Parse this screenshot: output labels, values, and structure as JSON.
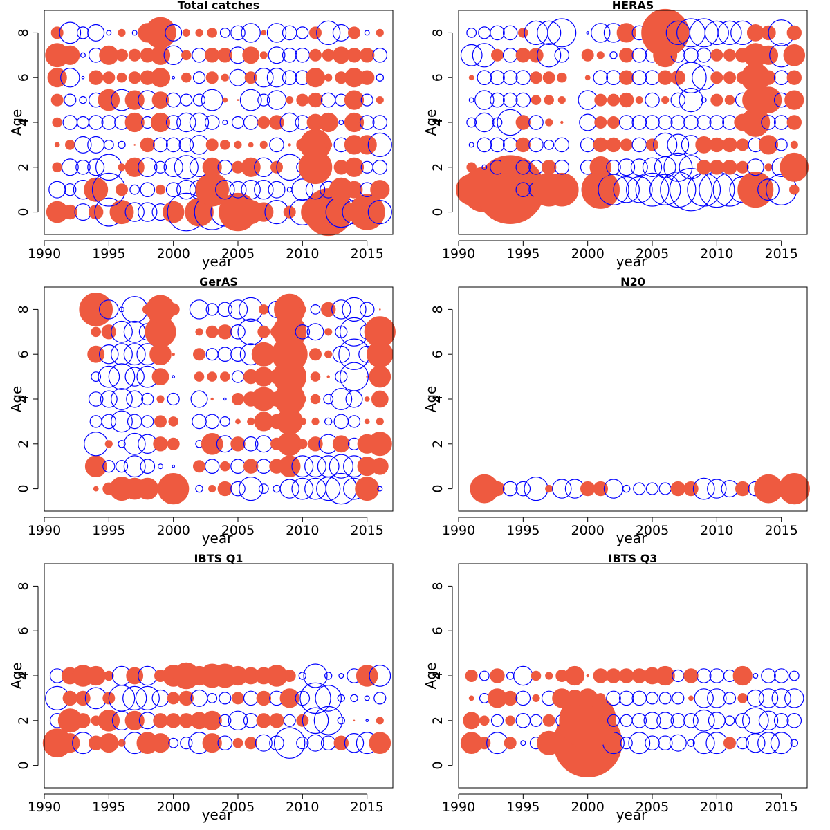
{
  "figure": {
    "colors": {
      "positive": "#EE5A40",
      "negative": "#0000FF"
    },
    "encoding_note": "Each bubble is a residual; filled orange circles are positive, open blue circles are negative; radius proportional to |residual|."
  },
  "chart_data": [
    {
      "type": "bubble",
      "title": "Total catches",
      "xlabel": "year",
      "ylabel": "Age",
      "xlim": [
        1990,
        2017
      ],
      "ylim": [
        -1,
        9
      ],
      "xticks": [
        1990,
        1995,
        2000,
        2005,
        2010,
        2015
      ],
      "yticks": [
        0,
        2,
        4,
        6,
        8
      ],
      "years": [
        1991,
        1992,
        1993,
        1994,
        1995,
        1996,
        1997,
        1998,
        1999,
        2000,
        2001,
        2002,
        2003,
        2004,
        2005,
        2006,
        2007,
        2008,
        2009,
        2010,
        2011,
        2012,
        2013,
        2014,
        2015,
        2016
      ],
      "ages": [
        0,
        1,
        2,
        3,
        4,
        5,
        6,
        7,
        8
      ],
      "residuals_by_age": [
        [
          0.9,
          0.6,
          -0.7,
          0.6,
          -1.2,
          1.0,
          -0.8,
          -0.8,
          -0.7,
          0.9,
          -1.6,
          1.2,
          -1.5,
          -1.2,
          1.6,
          1.0,
          0.8,
          -1.0,
          0.5,
          -1.1,
          1.2,
          2.0,
          -1.3,
          -1.0,
          1.5,
          -1.0
        ],
        [
          -0.7,
          -0.5,
          -0.8,
          1.0,
          -1.4,
          0.5,
          -0.4,
          -0.6,
          0.4,
          -0.6,
          -0.8,
          -0.8,
          1.4,
          -0.8,
          -0.7,
          -0.8,
          -0.8,
          -0.7,
          -0.2,
          -0.9,
          -0.8,
          -0.7,
          1.0,
          0.7,
          -0.6,
          0.8
        ],
        [
          0.4,
          -0.7,
          -0.6,
          -0.7,
          -1.1,
          0.3,
          0.8,
          -0.8,
          -0.5,
          -0.8,
          -1.0,
          -0.8,
          0.8,
          -0.6,
          0.5,
          0.8,
          -0.8,
          0.5,
          -1.1,
          -0.5,
          1.4,
          0.2,
          0.6,
          0.8,
          -0.5,
          -0.6
        ],
        [
          0.2,
          0.4,
          -0.7,
          -0.7,
          -0.4,
          -0.3,
          0.0,
          0.6,
          -0.6,
          -0.6,
          -0.6,
          -0.8,
          0.5,
          0.4,
          0.3,
          0.2,
          0.3,
          -0.6,
          0.1,
          0.5,
          1.3,
          0.3,
          -0.6,
          0.8,
          0.8,
          -1.0
        ],
        [
          0.4,
          -0.6,
          -0.5,
          -0.6,
          -0.6,
          -0.6,
          0.8,
          -0.5,
          0.8,
          -0.6,
          -0.8,
          -0.8,
          -0.6,
          -0.2,
          -0.5,
          -0.6,
          0.5,
          0.6,
          -0.8,
          -0.6,
          0.7,
          0.8,
          -0.2,
          0.8,
          -0.6,
          -0.6
        ],
        [
          0.5,
          -0.5,
          -0.3,
          -0.6,
          0.9,
          -0.9,
          0.8,
          -0.8,
          0.7,
          -0.6,
          -0.5,
          -0.5,
          -0.9,
          0.2,
          0.0,
          -0.9,
          -0.5,
          -0.8,
          0.3,
          0.5,
          0.6,
          -0.6,
          -0.5,
          0.8,
          -0.5,
          0.3
        ],
        [
          0.8,
          -0.8,
          -0.1,
          0.6,
          0.5,
          0.4,
          0.5,
          0.6,
          0.8,
          -0.1,
          0.4,
          -0.5,
          0.5,
          0.3,
          -0.7,
          0.5,
          -0.8,
          -0.8,
          -0.6,
          -0.6,
          0.8,
          0.3,
          0.5,
          0.8,
          0.6,
          -0.3
        ],
        [
          1.0,
          0.8,
          -0.2,
          -0.6,
          0.8,
          0.5,
          0.5,
          0.6,
          0.8,
          -0.8,
          0.4,
          -0.6,
          0.6,
          0.6,
          -0.7,
          0.7,
          0.3,
          -0.7,
          -0.6,
          -0.6,
          0.5,
          0.5,
          0.7,
          0.6,
          0.6,
          -0.6
        ],
        [
          0.5,
          -0.9,
          -0.5,
          -0.7,
          -0.2,
          0.3,
          -0.2,
          0.8,
          1.3,
          -0.7,
          0.3,
          0.3,
          0.4,
          -0.4,
          -0.6,
          -0.8,
          0.2,
          -0.8,
          -0.6,
          -0.5,
          0.5,
          -1.0,
          -0.7,
          0.5,
          -0.2,
          0.3
        ]
      ]
    },
    {
      "type": "bubble",
      "title": "HERAS",
      "xlabel": "year",
      "ylabel": "Age",
      "xlim": [
        1990,
        2017
      ],
      "ylim": [
        -1,
        9
      ],
      "xticks": [
        1990,
        1995,
        2000,
        2005,
        2010,
        2015
      ],
      "yticks": [
        0,
        2,
        4,
        6,
        8
      ],
      "years": [
        1991,
        1992,
        1993,
        1994,
        1995,
        1996,
        1997,
        1998,
        2000,
        2001,
        2002,
        2003,
        2004,
        2005,
        2006,
        2007,
        2008,
        2009,
        2010,
        2011,
        2012,
        2013,
        2014,
        2015,
        2016
      ],
      "ages": [
        1,
        2,
        3,
        4,
        5,
        6,
        7,
        8
      ],
      "residuals_by_age": [
        [
          1.3,
          1.9,
          2.2,
          2.9,
          -0.6,
          -0.6,
          1.4,
          1.4,
          -0.5,
          1.6,
          -1.3,
          -1.1,
          -1.1,
          -1.4,
          -1.3,
          -1.5,
          -1.8,
          -1.4,
          -1.5,
          -1.4,
          -1.1,
          1.5,
          -0.9,
          -1.3,
          0.4
        ],
        [
          0.4,
          -0.2,
          -0.6,
          0.9,
          -0.6,
          -0.6,
          0.6,
          -0.6,
          -0.6,
          0.9,
          -0.6,
          -0.7,
          -0.7,
          -0.8,
          -0.9,
          -1.2,
          -1.0,
          0.6,
          0.6,
          0.6,
          0.5,
          -0.7,
          0.3,
          -0.8,
          1.2
        ],
        [
          -0.2,
          -0.6,
          -0.6,
          -0.6,
          0.6,
          -0.6,
          -0.4,
          -0.6,
          -0.6,
          0.6,
          0.6,
          0.5,
          -0.6,
          0.5,
          -1.0,
          -0.9,
          -0.8,
          0.7,
          0.6,
          0.6,
          0.5,
          -0.6,
          0.8,
          -0.5,
          0.3
        ],
        [
          -0.4,
          -0.8,
          -0.4,
          -1.1,
          0.6,
          -0.6,
          0.3,
          0.1,
          -0.7,
          0.5,
          0.5,
          -0.6,
          -0.6,
          -0.6,
          -0.6,
          -0.6,
          -0.6,
          -0.6,
          -0.6,
          -0.6,
          0.7,
          1.2,
          -0.6,
          -0.6,
          0.6
        ],
        [
          -0.2,
          -0.8,
          -0.6,
          -0.6,
          -0.6,
          0.4,
          0.4,
          0.3,
          -0.8,
          0.5,
          0.5,
          0.6,
          0.3,
          -0.6,
          0.3,
          -0.6,
          -1.0,
          -0.2,
          0.5,
          0.4,
          -0.6,
          1.1,
          1.1,
          -0.6,
          0.8
        ],
        [
          0.2,
          -0.6,
          -0.6,
          -0.6,
          -0.6,
          0.5,
          0.5,
          0.4,
          0.2,
          -0.6,
          -0.6,
          0.6,
          -0.6,
          -0.6,
          0.6,
          0.6,
          -1.3,
          -1.0,
          0.5,
          0.5,
          0.5,
          1.2,
          0.6,
          -0.6,
          0.6
        ],
        [
          -0.9,
          -1.0,
          0.5,
          -0.6,
          0.6,
          0.6,
          -1.0,
          -0.6,
          0.5,
          0.3,
          -0.3,
          0.6,
          -0.6,
          -0.6,
          1.0,
          -0.6,
          -0.6,
          -0.6,
          0.5,
          0.5,
          0.6,
          1.0,
          0.8,
          -1.0,
          0.9
        ],
        [
          -0.4,
          -0.5,
          -0.6,
          -0.6,
          0.4,
          -1.0,
          -1.0,
          -1.2,
          -0.1,
          -0.8,
          -0.8,
          0.8,
          -0.6,
          -0.7,
          2.0,
          -1.0,
          -1.2,
          -1.2,
          -1.0,
          -1.0,
          -1.0,
          0.7,
          0.6,
          -1.1,
          0.6
        ]
      ]
    },
    {
      "type": "bubble",
      "title": "GerAS",
      "xlabel": "year",
      "ylabel": "Age",
      "xlim": [
        1990,
        2017
      ],
      "ylim": [
        -1,
        9
      ],
      "xticks": [
        1990,
        1995,
        2000,
        2005,
        2010,
        2015
      ],
      "yticks": [
        0,
        2,
        4,
        6,
        8
      ],
      "years": [
        1994,
        1995,
        1996,
        1997,
        1998,
        1999,
        2000,
        2002,
        2003,
        2004,
        2005,
        2006,
        2007,
        2008,
        2009,
        2010,
        2011,
        2012,
        2013,
        2014,
        2015,
        2016
      ],
      "ages": [
        0,
        1,
        2,
        3,
        4,
        5,
        6,
        7,
        8
      ],
      "residuals_by_age": [
        [
          0.2,
          0.5,
          1.0,
          0.9,
          0.9,
          0.3,
          1.3,
          -0.3,
          0.3,
          0.6,
          -0.6,
          -1.0,
          -0.4,
          -0.3,
          -0.8,
          -0.9,
          -0.9,
          -1.0,
          -1.3,
          -0.9,
          1.0,
          -0.2
        ],
        [
          0.9,
          -0.5,
          -0.5,
          -0.9,
          -0.6,
          -0.2,
          -0.1,
          0.5,
          -0.6,
          0.4,
          -0.6,
          0.6,
          -0.6,
          0.6,
          0.9,
          -0.9,
          -0.9,
          -0.9,
          -1.0,
          -0.9,
          0.8,
          0.7
        ],
        [
          -1.0,
          0.3,
          -0.3,
          -0.9,
          -0.8,
          0.6,
          0.5,
          -0.3,
          0.9,
          -0.7,
          0.6,
          -0.6,
          -0.7,
          0.5,
          1.0,
          0.4,
          0.6,
          -0.8,
          0.7,
          -0.5,
          0.8,
          1.0
        ],
        [
          -0.5,
          -0.6,
          -0.9,
          -0.6,
          -0.5,
          0.5,
          0.4,
          -0.6,
          -0.6,
          -0.4,
          0.2,
          0.3,
          0.8,
          0.6,
          1.1,
          0.3,
          0.3,
          -0.3,
          -0.6,
          -0.5,
          0.2,
          0.3
        ],
        [
          -0.6,
          -0.7,
          -0.9,
          -0.7,
          -0.5,
          0.3,
          -0.5,
          -0.7,
          0.1,
          -0.1,
          0.5,
          0.6,
          1.0,
          0.6,
          1.3,
          0.3,
          0.4,
          -0.4,
          -0.9,
          -0.7,
          0.2,
          0.7
        ],
        [
          -0.4,
          -0.9,
          -1.1,
          -0.8,
          -0.9,
          0.7,
          -0.1,
          0.4,
          0.4,
          0.4,
          -0.5,
          0.6,
          0.8,
          0.6,
          1.4,
          0.3,
          0.4,
          0.1,
          -0.5,
          -1.2,
          0.0,
          0.9
        ],
        [
          0.7,
          -0.8,
          -0.9,
          -0.9,
          -0.9,
          0.9,
          0.1,
          0.5,
          -0.5,
          -0.6,
          -0.6,
          -0.9,
          1.0,
          0.6,
          1.5,
          0.3,
          0.5,
          0.3,
          -0.7,
          -1.3,
          -0.7,
          1.1
        ],
        [
          0.4,
          0.6,
          -0.9,
          -0.9,
          -0.7,
          1.3,
          0.2,
          0.3,
          0.5,
          0.6,
          -0.6,
          -1.1,
          0.5,
          0.5,
          1.4,
          -0.6,
          -0.7,
          0.3,
          -0.5,
          -1.2,
          -0.6,
          1.3
        ],
        [
          1.4,
          -0.8,
          -0.2,
          -1.1,
          0.4,
          1.2,
          0.5,
          -0.8,
          -0.5,
          -0.6,
          -0.8,
          -1.0,
          0.4,
          -0.7,
          1.3,
          0.3,
          -0.4,
          0.6,
          -0.8,
          -1.0,
          -0.6,
          0.0
        ]
      ]
    },
    {
      "type": "bubble",
      "title": "N20",
      "xlabel": "year",
      "ylabel": "Age",
      "xlim": [
        1990,
        2017
      ],
      "ylim": [
        -1,
        9
      ],
      "xticks": [
        1990,
        1995,
        2000,
        2005,
        2010,
        2015
      ],
      "yticks": [
        0,
        2,
        4,
        6,
        8
      ],
      "years": [
        1992,
        1993,
        1994,
        1995,
        1996,
        1997,
        1998,
        1999,
        2000,
        2001,
        2002,
        2003,
        2004,
        2005,
        2006,
        2007,
        2008,
        2009,
        2010,
        2011,
        2012,
        2013,
        2014,
        2015,
        2016
      ],
      "ages": [
        0
      ],
      "residuals_by_age": [
        [
          1.2,
          0.6,
          -0.6,
          -0.6,
          -1.0,
          0.3,
          -0.8,
          -0.8,
          0.6,
          0.6,
          -0.8,
          -0.3,
          -0.5,
          -0.5,
          -0.5,
          0.6,
          0.6,
          -0.9,
          -0.8,
          -0.7,
          0.6,
          -0.6,
          1.2,
          0.2,
          1.3
        ]
      ]
    },
    {
      "type": "bubble",
      "title": "IBTS Q1",
      "xlabel": "year",
      "ylabel": "Age",
      "xlim": [
        1990,
        2017
      ],
      "ylim": [
        -1,
        9
      ],
      "xticks": [
        1990,
        1995,
        2000,
        2005,
        2010,
        2015
      ],
      "yticks": [
        0,
        2,
        4,
        6,
        8
      ],
      "years": [
        1991,
        1992,
        1993,
        1994,
        1995,
        1996,
        1997,
        1998,
        1999,
        2000,
        2001,
        2002,
        2003,
        2004,
        2005,
        2006,
        2007,
        2008,
        2009,
        2010,
        2011,
        2012,
        2013,
        2014,
        2015,
        2016
      ],
      "ages": [
        1,
        2,
        3,
        4
      ],
      "residuals_by_age": [
        [
          1.2,
          0.8,
          -0.9,
          0.6,
          0.8,
          0.3,
          -0.9,
          0.9,
          0.8,
          -0.4,
          -0.5,
          -0.9,
          0.8,
          -0.6,
          0.4,
          0.5,
          -0.7,
          -0.6,
          -1.3,
          -0.5,
          -0.7,
          -0.6,
          0.6,
          -0.8,
          -0.9,
          0.9
        ],
        [
          -0.6,
          1.0,
          0.6,
          0.4,
          0.9,
          -0.8,
          0.8,
          -0.7,
          0.6,
          0.6,
          0.6,
          0.7,
          0.8,
          -0.5,
          -0.8,
          -0.6,
          0.6,
          0.6,
          -0.5,
          0.5,
          -1.1,
          -1.2,
          -0.3,
          0.0,
          -0.1,
          0.3
        ],
        [
          -1.0,
          0.6,
          0.6,
          -0.9,
          0.5,
          -1.1,
          -1.0,
          -1.0,
          -0.7,
          0.5,
          0.6,
          -0.7,
          -0.4,
          -0.5,
          0.5,
          -0.6,
          0.6,
          -0.6,
          0.8,
          -0.6,
          -1.3,
          -1.1,
          -0.3,
          -0.3,
          -0.2,
          -0.5
        ],
        [
          -0.6,
          0.7,
          0.9,
          0.8,
          0.4,
          -0.8,
          0.7,
          -0.8,
          0.5,
          0.9,
          1.1,
          0.8,
          1.0,
          1.0,
          0.8,
          0.7,
          0.7,
          0.9,
          0.5,
          -0.3,
          -1.0,
          -0.3,
          -0.2,
          -0.6,
          0.9,
          -0.9
        ]
      ]
    },
    {
      "type": "bubble",
      "title": "IBTS Q3",
      "xlabel": "year",
      "ylabel": "Age",
      "xlim": [
        1990,
        2017
      ],
      "ylim": [
        -1,
        9
      ],
      "xticks": [
        1990,
        1995,
        2000,
        2005,
        2010,
        2015
      ],
      "yticks": [
        0,
        2,
        4,
        6,
        8
      ],
      "years": [
        1991,
        1992,
        1993,
        1994,
        1995,
        1996,
        1997,
        1998,
        1999,
        2000,
        2001,
        2002,
        2003,
        2004,
        2005,
        2006,
        2007,
        2008,
        2009,
        2010,
        2011,
        2012,
        2013,
        2014,
        2015,
        2016
      ],
      "ages": [
        1,
        2,
        3,
        4
      ],
      "residuals_by_age": [
        [
          0.9,
          0.5,
          -0.9,
          0.5,
          -0.2,
          -0.5,
          1.0,
          1.0,
          0.6,
          2.9,
          0.4,
          -0.9,
          -0.5,
          -0.9,
          -0.6,
          -0.6,
          -0.7,
          -0.3,
          -0.9,
          -0.9,
          0.5,
          -0.5,
          -0.8,
          -0.9,
          -0.9,
          -0.3
        ],
        [
          0.7,
          0.4,
          -0.5,
          0.4,
          -0.6,
          -0.5,
          0.5,
          -0.5,
          1.0,
          2.4,
          0.3,
          -0.5,
          -0.5,
          -0.6,
          -0.7,
          -0.7,
          -0.6,
          -0.6,
          -0.9,
          -0.7,
          -0.4,
          -0.6,
          -1.1,
          -0.8,
          -0.6,
          -0.6
        ],
        [
          0.2,
          -0.4,
          0.8,
          0.6,
          -0.6,
          0.3,
          -0.6,
          0.8,
          0.7,
          0.8,
          0.4,
          -0.6,
          -0.6,
          -0.6,
          -0.5,
          -0.5,
          -0.5,
          0.2,
          -0.8,
          -0.8,
          -0.5,
          0.4,
          -0.7,
          -0.8,
          -0.8,
          -0.8
        ],
        [
          0.5,
          -0.4,
          0.6,
          -0.3,
          -0.8,
          0.4,
          0.3,
          0.5,
          0.8,
          0.1,
          0.6,
          0.6,
          0.6,
          0.6,
          0.7,
          0.8,
          -0.5,
          0.6,
          -0.6,
          -0.6,
          -0.5,
          0.8,
          -0.2,
          -0.6,
          -0.6,
          -0.4
        ]
      ]
    }
  ]
}
